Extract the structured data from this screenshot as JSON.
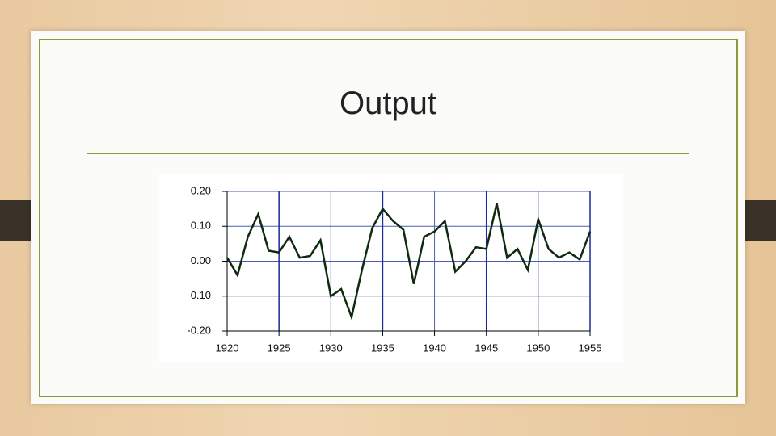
{
  "chart_data": {
    "type": "line",
    "title": "Output",
    "x": [
      1920,
      1921,
      1922,
      1923,
      1924,
      1925,
      1926,
      1927,
      1928,
      1929,
      1930,
      1931,
      1932,
      1933,
      1934,
      1935,
      1936,
      1937,
      1938,
      1939,
      1940,
      1941,
      1942,
      1943,
      1944,
      1945,
      1946,
      1947,
      1948,
      1949,
      1950,
      1951,
      1952,
      1953,
      1954,
      1955
    ],
    "series": [
      {
        "color": "#0f2a0f",
        "values": [
          0.01,
          -0.04,
          0.07,
          0.135,
          0.03,
          0.025,
          0.07,
          0.01,
          0.015,
          0.06,
          -0.1,
          -0.08,
          -0.16,
          -0.025,
          0.095,
          0.15,
          0.115,
          0.09,
          -0.065,
          0.07,
          0.085,
          0.115,
          -0.03,
          0.0,
          0.04,
          0.035,
          0.165,
          0.01,
          0.035,
          -0.025,
          0.12,
          0.035,
          0.01,
          0.025,
          0.005,
          0.085
        ]
      }
    ],
    "xlim": [
      1920,
      1955
    ],
    "xticks": [
      1920,
      1925,
      1930,
      1935,
      1940,
      1945,
      1950,
      1955
    ],
    "ylim": [
      -0.2,
      0.2
    ],
    "yticks": [
      {
        "value": 0.2,
        "label": "0.20"
      },
      {
        "value": 0.1,
        "label": "0.10"
      },
      {
        "value": 0,
        "label": "0.00"
      },
      {
        "value": -0.1,
        "label": "-0.10"
      },
      {
        "value": -0.2,
        "label": "-0.20"
      }
    ],
    "grid": true
  }
}
